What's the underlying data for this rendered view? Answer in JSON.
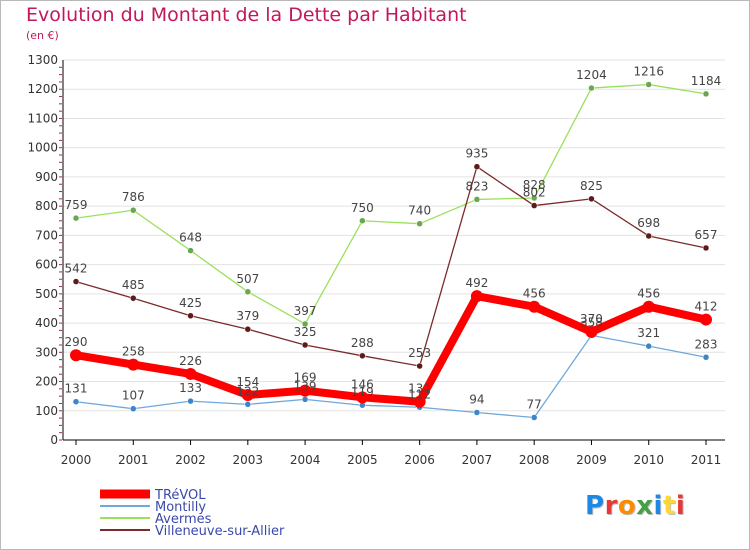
{
  "title": "Evolution du Montant de la Dette par Habitant",
  "subtitle": "(en €)",
  "logo": {
    "letters": [
      "P",
      "r",
      "o",
      "x",
      "i",
      "t",
      "i"
    ],
    "colors": [
      "#1e88e5",
      "#e53935",
      "#fb8c00",
      "#43a047",
      "#1e88e5",
      "#fdd835",
      "#e53935"
    ]
  },
  "chart_data": {
    "type": "line",
    "categories": [
      "2000",
      "2001",
      "2002",
      "2003",
      "2004",
      "2005",
      "2006",
      "2007",
      "2008",
      "2009",
      "2010",
      "2011"
    ],
    "ylim": [
      0,
      1300
    ],
    "yticks": [
      "0",
      "100",
      "200",
      "300",
      "400",
      "500",
      "600",
      "700",
      "800",
      "900",
      "1000",
      "1100",
      "1200",
      "1300"
    ],
    "grid": "horizontal",
    "legend_position": "bottom-left",
    "series": [
      {
        "name": "TRéVOL",
        "color": "#ff0000",
        "marker_color": "#ff0000",
        "values": [
          290,
          258,
          226,
          154,
          169,
          146,
          131,
          492,
          456,
          370,
          456,
          412
        ],
        "labels": [
          "290",
          "258",
          "226",
          "154",
          "169",
          "146",
          "131",
          "492",
          "456",
          "370",
          "456",
          "412"
        ]
      },
      {
        "name": "Montilly",
        "color": "#6fa8dc",
        "marker_color": "#3d85c6",
        "values": [
          131,
          107,
          133,
          122,
          139,
          119,
          112,
          94,
          77,
          358,
          321,
          283
        ],
        "labels": [
          "131",
          "107",
          "133",
          "122",
          "139",
          "119",
          "112",
          "94",
          "77",
          "358",
          "321",
          "283"
        ]
      },
      {
        "name": "Avermes",
        "color": "#9be05a",
        "marker_color": "#6aa84f",
        "values": [
          759,
          786,
          648,
          507,
          397,
          750,
          740,
          823,
          828,
          1204,
          1216,
          1184
        ],
        "labels": [
          "759",
          "786",
          "648",
          "507",
          "397",
          "750",
          "740",
          "823",
          "828",
          "1204",
          "1216",
          "1184"
        ]
      },
      {
        "name": "Villeneuve-sur-Allier",
        "color": "#7b2b2b",
        "marker_color": "#5c1a1a",
        "values": [
          542,
          485,
          425,
          379,
          325,
          288,
          253,
          935,
          802,
          825,
          698,
          657
        ],
        "labels": [
          "542",
          "485",
          "425",
          "379",
          "325",
          "288",
          "253",
          "935",
          "802",
          "825",
          "698",
          "657"
        ]
      }
    ]
  }
}
